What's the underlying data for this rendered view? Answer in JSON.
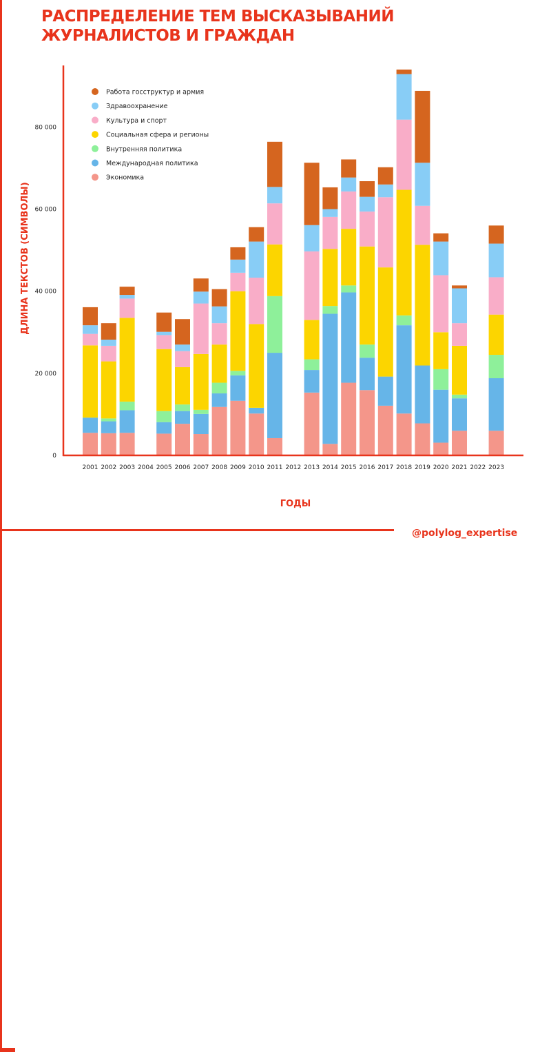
{
  "header": {
    "title": "РАСПРЕДЕЛЕНИЕ ТЕМ ВЫСКАЗЫВАНИЙ ЖУРНАЛИСТОВ И ГРАЖДАН",
    "handle": "@polylog_expertise"
  },
  "chart_data": {
    "type": "bar",
    "stacked": true,
    "xlabel": "ГОДЫ",
    "ylabel": "ДЛИНА ТЕКСТОВ (СИМВОЛЫ)",
    "ylim": [
      0,
      95000
    ],
    "yticks": [
      0,
      20000,
      40000,
      60000,
      80000
    ],
    "ytick_labels": [
      "0",
      "20 000",
      "40 000",
      "60 000",
      "80 000"
    ],
    "grid": false,
    "legend_position": "top-left",
    "categories": [
      "2001",
      "2002",
      "2003",
      "2004",
      "2005",
      "2006",
      "2007",
      "2008",
      "2009",
      "2010",
      "2011",
      "2012",
      "2013",
      "2014",
      "2015",
      "2016",
      "2017",
      "2018",
      "2019",
      "2020",
      "2021",
      "2022",
      "2023"
    ],
    "series": [
      {
        "name": "Экономика",
        "color": "#f4968a",
        "values": [
          5500,
          5400,
          5500,
          0,
          5300,
          7700,
          5200,
          11800,
          13300,
          10200,
          4200,
          0,
          15300,
          2800,
          17700,
          15900,
          12100,
          10200,
          7800,
          3100,
          6000,
          0,
          6000
        ]
      },
      {
        "name": "Международная политика",
        "color": "#66b5e8",
        "values": [
          3700,
          2900,
          5500,
          0,
          2800,
          3100,
          4900,
          3300,
          6200,
          1400,
          20800,
          0,
          5500,
          31700,
          22000,
          7900,
          7100,
          21500,
          14100,
          12900,
          7900,
          0,
          12800
        ]
      },
      {
        "name": "Внутренняя политика",
        "color": "#8ef09a",
        "values": [
          0,
          700,
          2100,
          0,
          2700,
          1600,
          1000,
          2600,
          1100,
          0,
          13800,
          0,
          2600,
          1900,
          1700,
          3200,
          0,
          2400,
          0,
          5000,
          900,
          0,
          5700
        ]
      },
      {
        "name": "Социальная сфера и регионы",
        "color": "#fcd500",
        "values": [
          17600,
          13900,
          20400,
          0,
          15100,
          9100,
          13600,
          9300,
          19400,
          20400,
          12600,
          0,
          9600,
          13900,
          13800,
          23900,
          26600,
          30600,
          29400,
          9000,
          11900,
          0,
          9800
        ]
      },
      {
        "name": "Культура и спорт",
        "color": "#f9adc8",
        "values": [
          2800,
          3800,
          4700,
          0,
          3400,
          3900,
          12300,
          5200,
          4500,
          11300,
          10000,
          0,
          16700,
          7800,
          9100,
          8500,
          17100,
          17100,
          9500,
          13900,
          5500,
          0,
          9100
        ]
      },
      {
        "name": "Здравоохранение",
        "color": "#88cdf6",
        "values": [
          2100,
          1500,
          900,
          0,
          800,
          1600,
          2900,
          4100,
          3200,
          8800,
          4000,
          0,
          6400,
          1900,
          3400,
          3600,
          3100,
          11100,
          10500,
          8200,
          8500,
          0,
          8200
        ]
      },
      {
        "name": "Работа госструктур и армия",
        "color": "#d5651f",
        "values": [
          4400,
          4000,
          2000,
          0,
          4700,
          6200,
          3200,
          4200,
          3000,
          3500,
          11000,
          0,
          15200,
          5300,
          4400,
          3800,
          4200,
          1100,
          17500,
          2000,
          700,
          0,
          4400
        ]
      }
    ]
  }
}
